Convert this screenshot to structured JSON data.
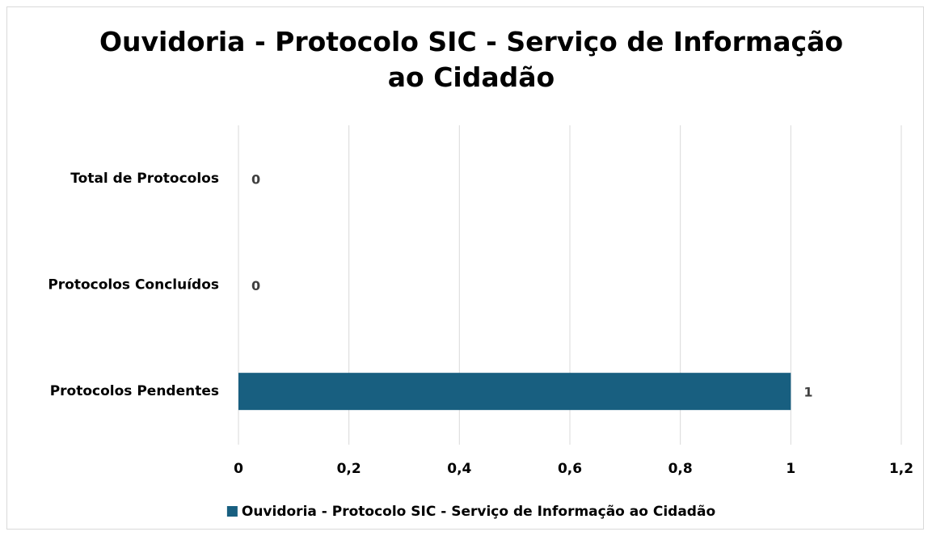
{
  "chart_data": {
    "type": "barh",
    "title": "Ouvidoria - Protocolo SIC - Serviço de Informação ao Cidadão",
    "categories": [
      "Total de Protocolos",
      "Protocolos Concluídos",
      "Protocolos Pendentes"
    ],
    "series": [
      {
        "name": "Ouvidoria - Protocolo SIC - Serviço de Informação ao Cidadão",
        "color": "#185f80",
        "values": [
          0,
          0,
          1
        ]
      }
    ],
    "xlim": [
      0,
      1.2
    ],
    "xticks": [
      0,
      {
        "value": 0.2,
        "label": "0,2"
      },
      {
        "value": 0.4,
        "label": "0,4"
      },
      {
        "value": 0.6,
        "label": "0,6"
      },
      {
        "value": 0.8,
        "label": "0,8"
      },
      1,
      {
        "value": 1.2,
        "label": "1,2"
      }
    ],
    "grid": true,
    "legend": "bottom"
  }
}
